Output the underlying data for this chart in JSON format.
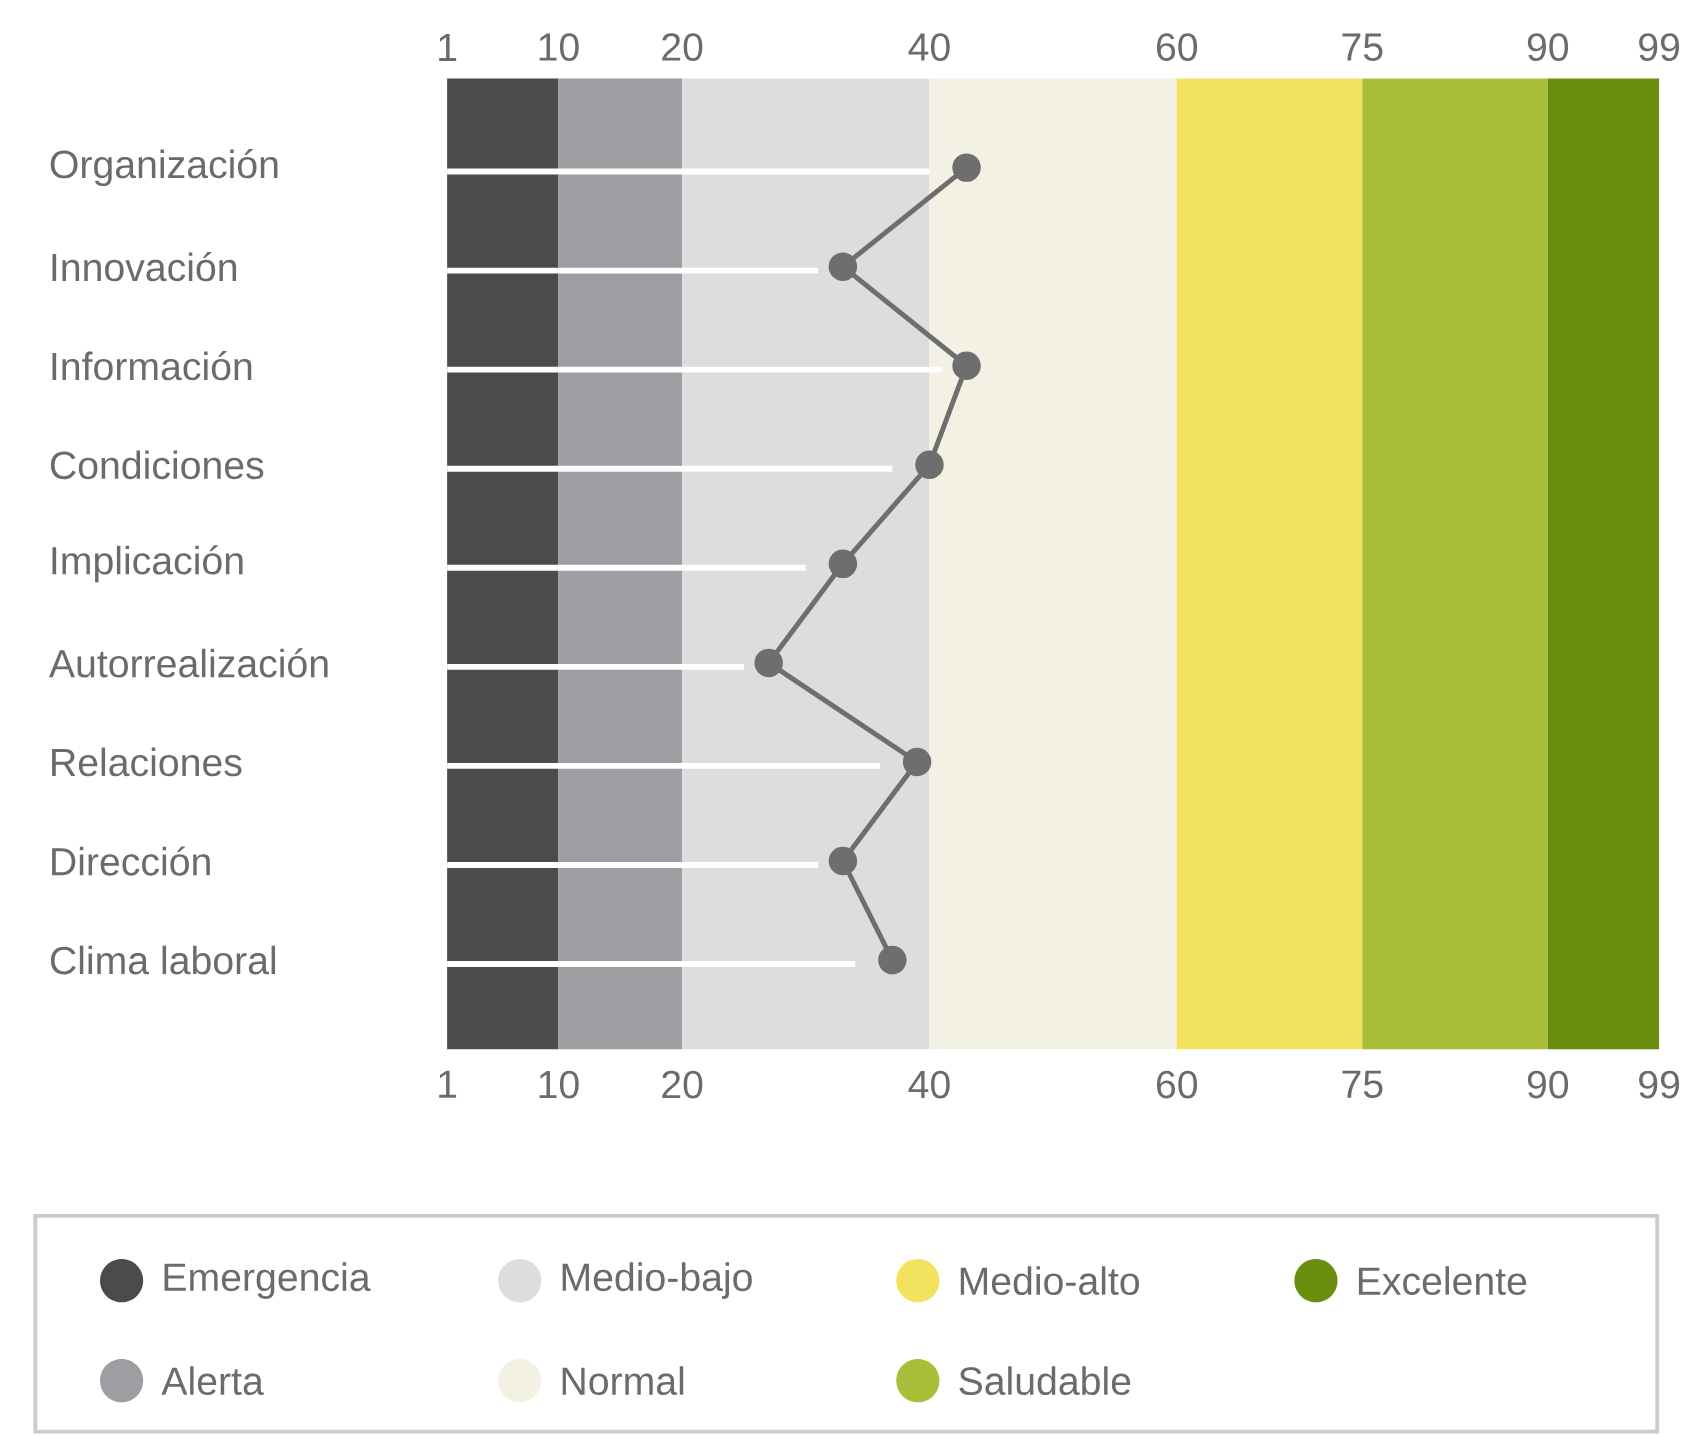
{
  "chart_data": {
    "type": "line",
    "orientation": "horizontal",
    "categories": [
      "Organización",
      "Innovación",
      "Información",
      "Condiciones",
      "Implicación",
      "Autorrealización",
      "Relaciones",
      "Dirección",
      "Clima laboral"
    ],
    "xlim": [
      1,
      99
    ],
    "xticks": [
      1,
      10,
      20,
      40,
      60,
      75,
      90,
      99
    ],
    "x2lim": [
      1,
      99
    ],
    "x2ticks": [
      1,
      10,
      20,
      40,
      60,
      75,
      90,
      99
    ],
    "bands": [
      {
        "axis": "x",
        "from": 1,
        "to": 10,
        "label": "Emergencia",
        "color": "#4b4b4d"
      },
      {
        "axis": "x",
        "from": 10,
        "to": 20,
        "label": "Alerta",
        "color": "#9d9ea2"
      },
      {
        "axis": "x",
        "from": 20,
        "to": 40,
        "label": "Medio-bajo",
        "color": "#dcdddf"
      },
      {
        "axis": "x",
        "from": 40,
        "to": 60,
        "label": "Normal",
        "color": "#f3f1e4"
      },
      {
        "axis": "x",
        "from": 60,
        "to": 75,
        "label": "Medio-alto",
        "color": "#f2e25d"
      },
      {
        "axis": "x",
        "from": 75,
        "to": 90,
        "label": "Saludable",
        "color": "#a9bf3a"
      },
      {
        "axis": "x",
        "from": 90,
        "to": 99,
        "label": "Excelente",
        "color": "#6a8e10"
      }
    ],
    "series": [
      {
        "type": "bar",
        "color": "#ffffff",
        "values": [
          40,
          31,
          41,
          37,
          30,
          25,
          36,
          31,
          34
        ]
      },
      {
        "color": "#6e6e6e",
        "values": [
          43,
          33,
          43,
          40,
          33,
          27,
          39,
          33,
          37
        ]
      }
    ],
    "marker": "circle",
    "line_style": "solid",
    "legend": "bottom"
  }
}
